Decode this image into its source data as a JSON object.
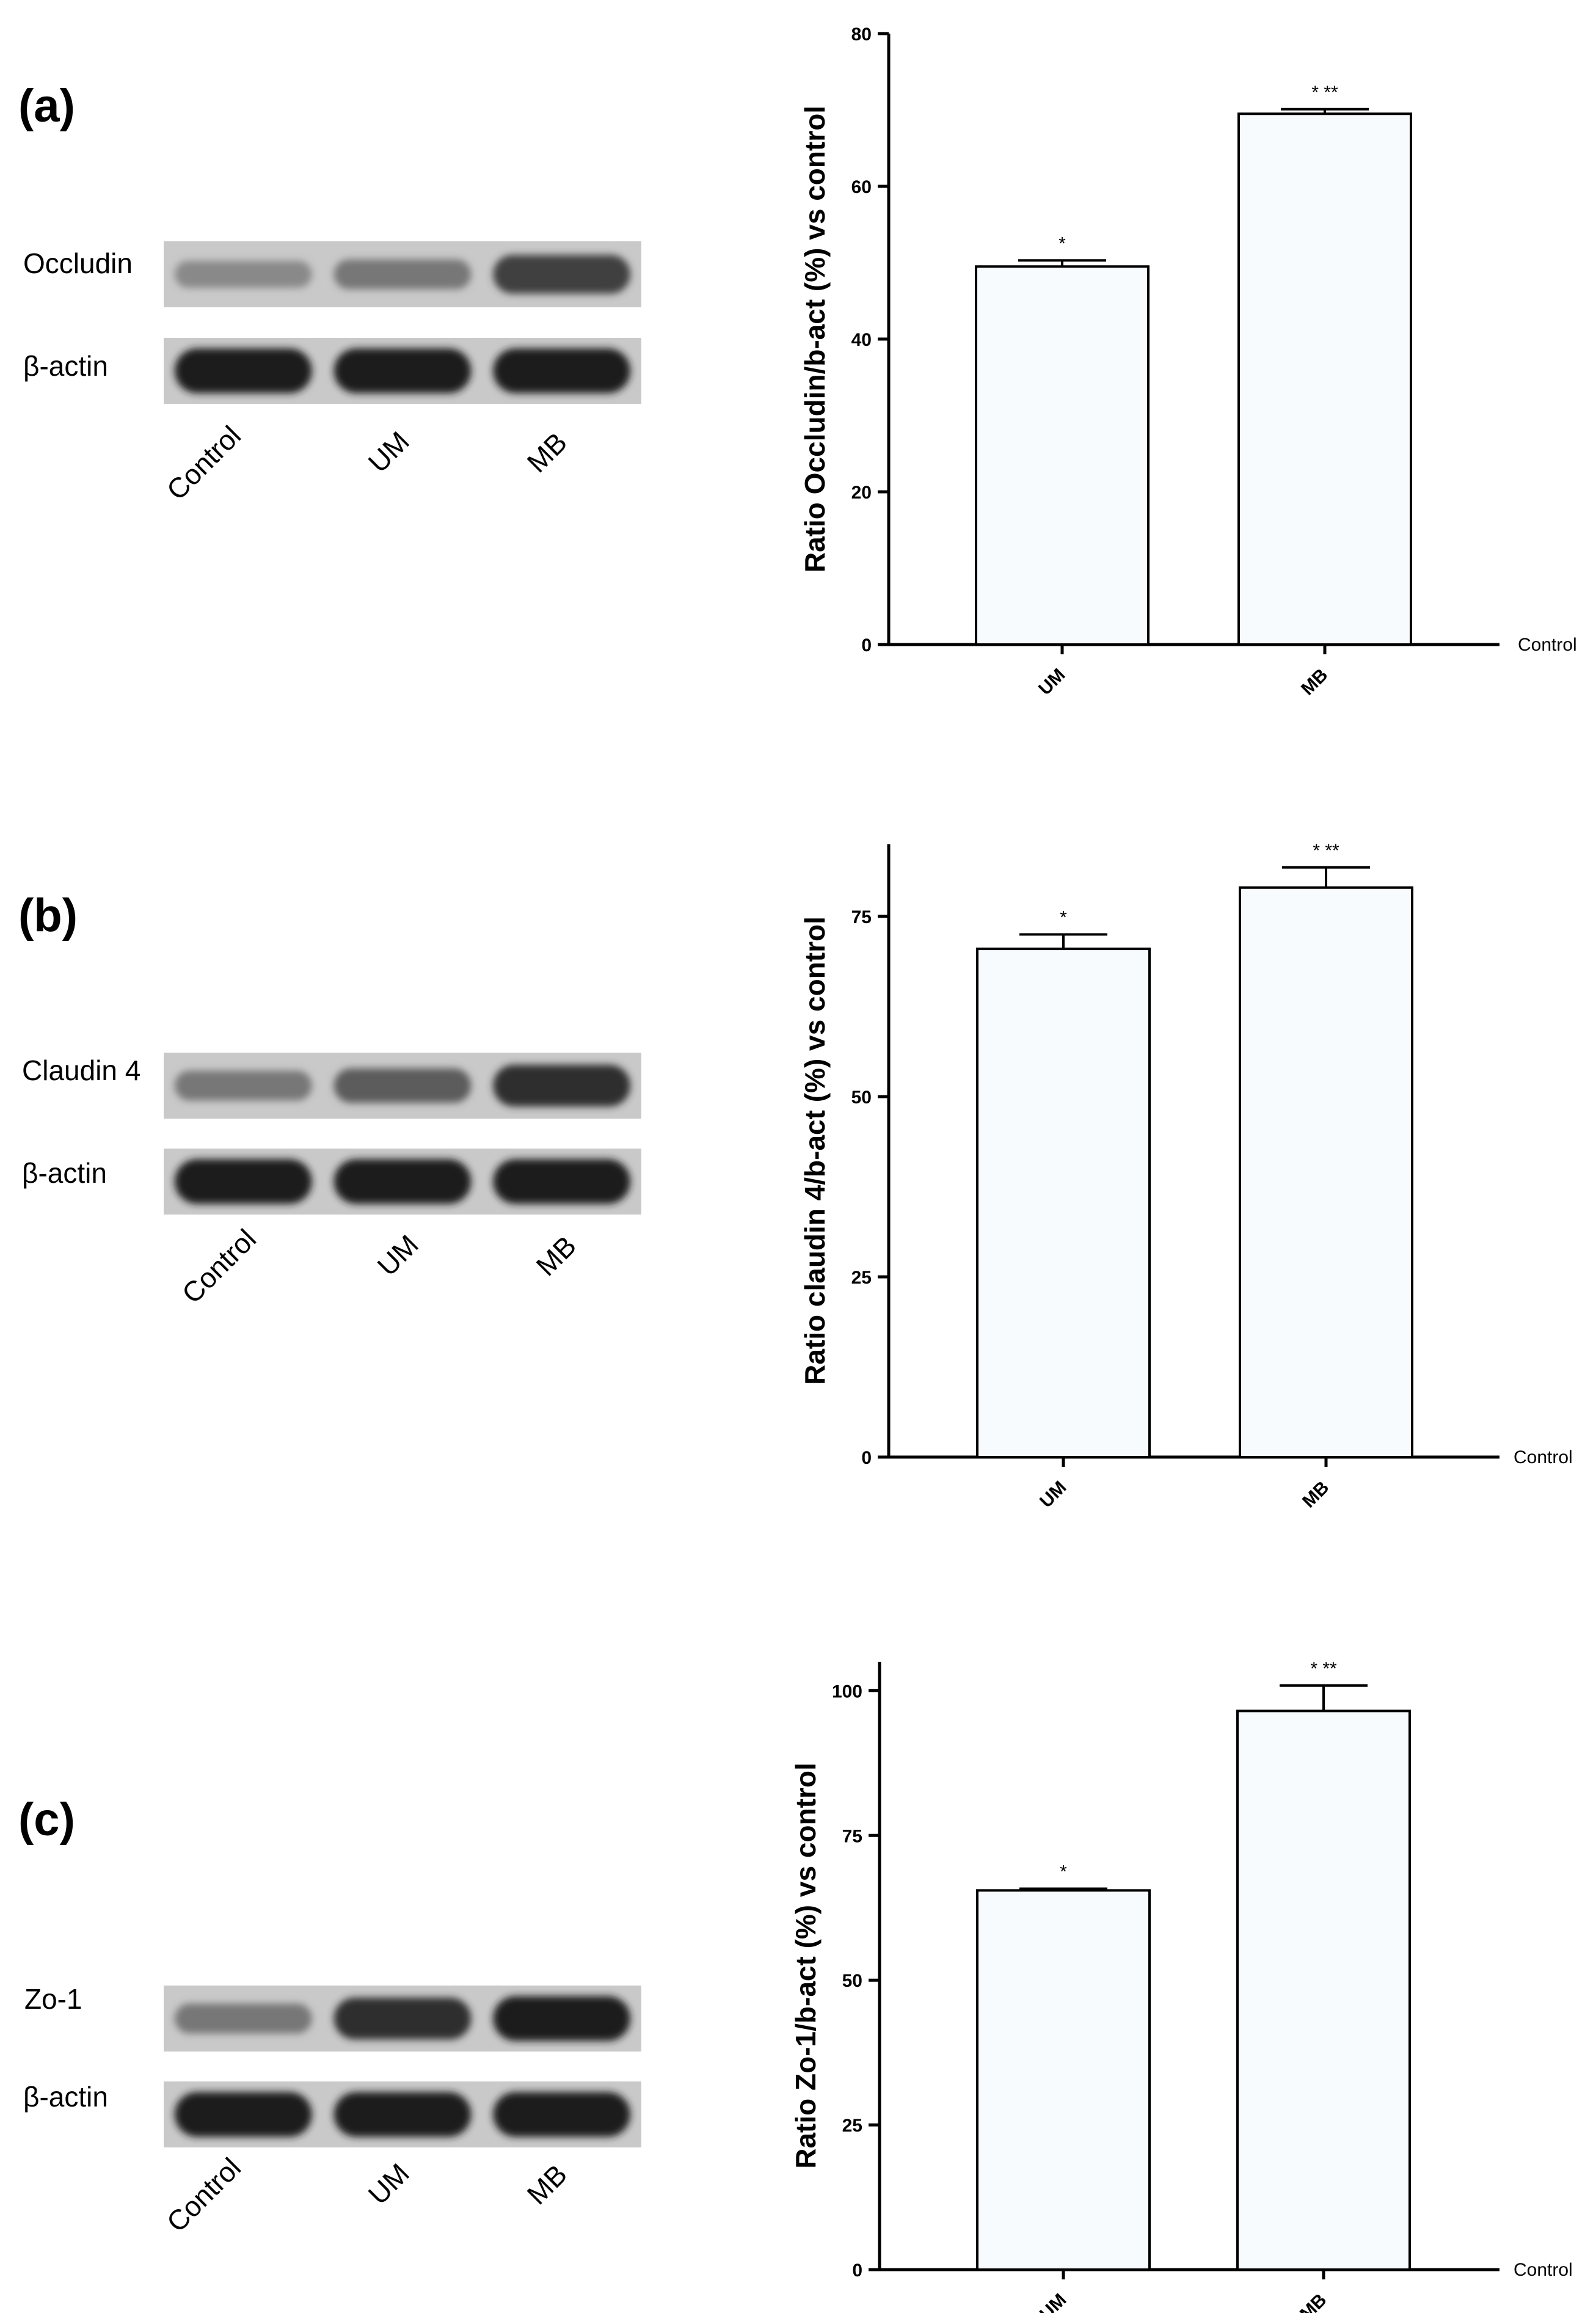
{
  "panels": [
    {
      "label": "(a)",
      "blot": {
        "rows": [
          "Occludin",
          "β-actin"
        ],
        "lanes": [
          "Control",
          "UM",
          "MB"
        ],
        "band_intensity": [
          [
            0.35,
            0.45,
            0.75
          ],
          [
            0.95,
            0.95,
            0.95
          ]
        ]
      }
    },
    {
      "label": "(b)",
      "blot": {
        "rows": [
          "Claudin 4",
          "β-actin"
        ],
        "lanes": [
          "Control",
          "UM",
          "MB"
        ],
        "band_intensity": [
          [
            0.45,
            0.6,
            0.85
          ],
          [
            0.95,
            0.95,
            0.95
          ]
        ]
      }
    },
    {
      "label": "(c)",
      "blot": {
        "rows": [
          "Zo-1",
          "β-actin"
        ],
        "lanes": [
          "Control",
          "UM",
          "MB"
        ],
        "band_intensity": [
          [
            0.45,
            0.85,
            0.95
          ],
          [
            0.95,
            0.95,
            0.95
          ]
        ]
      }
    }
  ],
  "chart_data": [
    {
      "type": "bar",
      "title": "",
      "xlabel": "",
      "ylabel": "Ratio Occludin/b-act (%) vs control",
      "categories": [
        "UM",
        "MB"
      ],
      "values": [
        49.5,
        69.5
      ],
      "errors": [
        0.8,
        0.6
      ],
      "significance": [
        "*",
        "* **"
      ],
      "baseline_label": "Control",
      "ylim": [
        0,
        80
      ],
      "yticks": [
        0,
        20,
        40,
        60,
        80
      ],
      "grid": false
    },
    {
      "type": "bar",
      "title": "",
      "xlabel": "",
      "ylabel": "Ratio claudin 4/b-act (%) vs control",
      "categories": [
        "UM",
        "MB"
      ],
      "values": [
        70.5,
        79
      ],
      "errors": [
        2.0,
        2.8
      ],
      "significance": [
        "*",
        "* **"
      ],
      "baseline_label": "Control",
      "ylim": [
        0,
        85
      ],
      "yticks": [
        0,
        25,
        50,
        75
      ],
      "grid": false
    },
    {
      "type": "bar",
      "title": "",
      "xlabel": "",
      "ylabel": "Ratio Zo-1/b-act (%) vs control",
      "categories": [
        "UM",
        "MB"
      ],
      "values": [
        65.5,
        96.5
      ],
      "errors": [
        0.3,
        4.4
      ],
      "significance": [
        "*",
        "* **"
      ],
      "baseline_label": "Control",
      "ylim": [
        0,
        105
      ],
      "yticks": [
        0,
        25,
        50,
        75,
        100
      ],
      "grid": false
    }
  ]
}
